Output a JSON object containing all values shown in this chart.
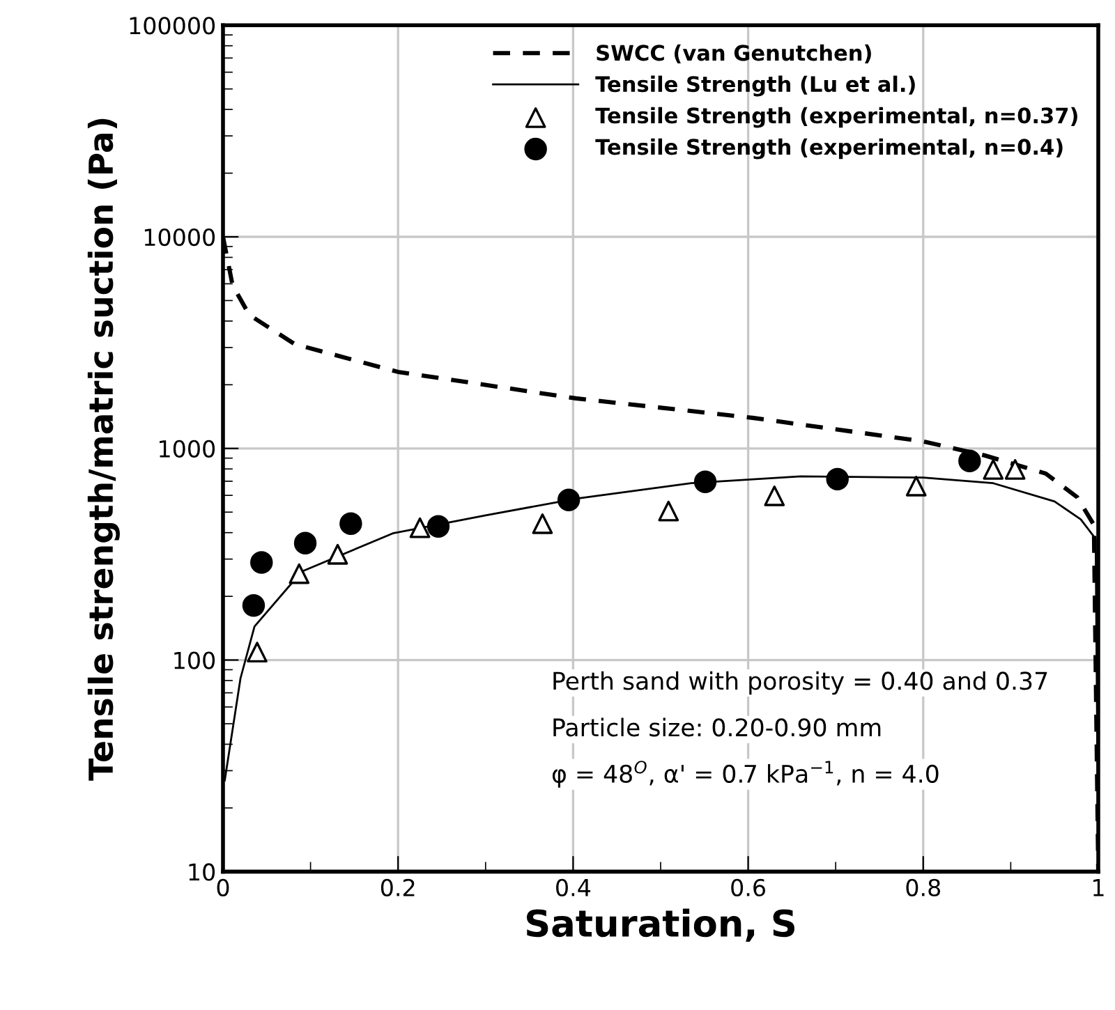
{
  "chart_data": {
    "type": "line",
    "xlabel": "Saturation, S",
    "ylabel": "Tensile strength/matric suction (Pa)",
    "log": "y",
    "xlim": [
      0,
      1
    ],
    "xticks": [
      0,
      0.2,
      0.4,
      0.6,
      0.8,
      1
    ],
    "ylim": [
      10,
      100000
    ],
    "yticks": [
      10,
      100,
      1000,
      10000,
      100000
    ],
    "grid": true,
    "legend": "top right",
    "annotations": [
      "Perth sand with porosity = 0.40 and 0.37",
      "Particle size: 0.20-0.90 mm",
      "φ = 48$^{O}$, α' = 0.7 kPa$^{−1}$, n = 4.0"
    ],
    "series": [
      {
        "name": "SWCC (van Genutchen)",
        "type": "line",
        "line_style": "dashed",
        "marker": "none",
        "color": "#000000",
        "x": [
          0,
          0.011,
          0.03,
          0.082,
          0.2,
          0.403,
          0.605,
          0.8,
          0.87,
          0.94,
          0.976,
          0.995,
          1
        ],
        "values": [
          10000,
          5890,
          4280,
          3110,
          2300,
          1725,
          1395,
          1080,
          927,
          761,
          588,
          435,
          10
        ]
      },
      {
        "name": "Tensile Strength (Lu et al.)",
        "type": "line",
        "line_style": "solid",
        "marker": "none",
        "color": "#000000",
        "x": [
          0.002,
          0.02,
          0.036,
          0.09,
          0.194,
          0.3,
          0.405,
          0.535,
          0.66,
          0.8,
          0.88,
          0.95,
          0.98,
          0.997,
          1
        ],
        "values": [
          27,
          82,
          144,
          262,
          397,
          483,
          580,
          685,
          738,
          728,
          685,
          562,
          462,
          374,
          10
        ]
      },
      {
        "name": "Tensile Strength (experimental, n=0.37)",
        "type": "scatter",
        "marker": "triangle",
        "color": "#000000",
        "x": [
          0.039,
          0.087,
          0.131,
          0.225,
          0.365,
          0.509,
          0.63,
          0.792,
          0.88,
          0.905
        ],
        "values": [
          109,
          256,
          316,
          422,
          441,
          506,
          597,
          664,
          796,
          796
        ]
      },
      {
        "name": "Tensile Strength (experimental, n=0.4)",
        "type": "scatter",
        "marker": "circle",
        "color": "#000000",
        "x": [
          0.035,
          0.044,
          0.094,
          0.146,
          0.246,
          0.395,
          0.551,
          0.702,
          0.853
        ],
        "values": [
          181,
          289,
          357,
          441,
          428,
          571,
          695,
          716,
          873
        ]
      }
    ]
  }
}
